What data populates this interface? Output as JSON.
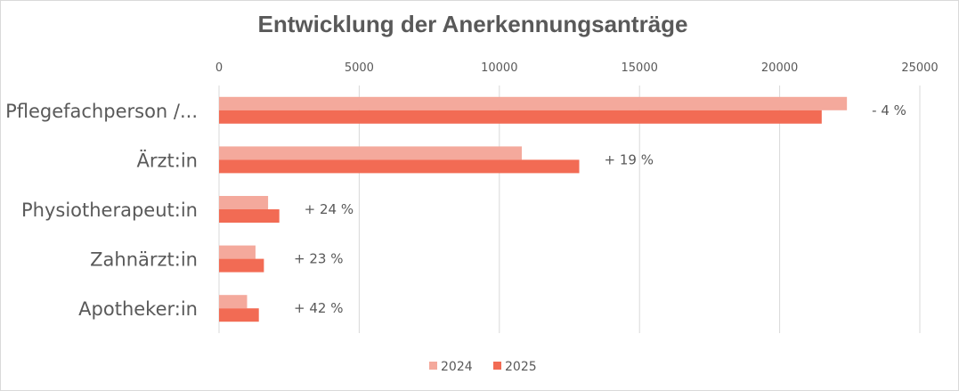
{
  "chart_data": {
    "type": "bar",
    "orientation": "horizontal",
    "title": "Entwicklung der Anerkennungsanträge",
    "xlabel": "",
    "ylabel": "",
    "xlim": [
      0,
      25000
    ],
    "ticks": [
      "0",
      "5000",
      "10000",
      "15000",
      "20000",
      "25000"
    ],
    "grid": true,
    "legend_position": "bottom",
    "categories": [
      "Pflegefachperson /...",
      "Ärzt:in",
      "Physiotherapeut:in",
      "Zahnärzt:in",
      "Apotheker:in"
    ],
    "series": [
      {
        "name": "2024",
        "color": "#f4a99c",
        "values": [
          22400,
          10800,
          1750,
          1300,
          1000
        ]
      },
      {
        "name": "2025",
        "color": "#f26b54",
        "values": [
          21500,
          12850,
          2150,
          1600,
          1420
        ]
      }
    ],
    "annotations": [
      "- 4 %",
      "+ 19 %",
      "+ 24 %",
      "+ 23 %",
      "+ 42 %"
    ]
  }
}
